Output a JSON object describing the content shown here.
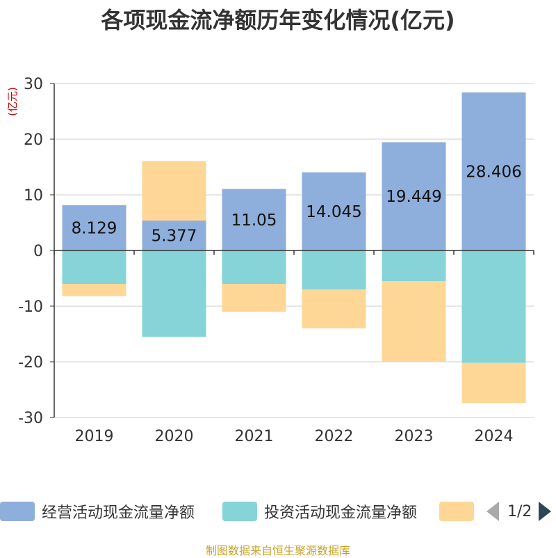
{
  "title": "各项现金流净额历年变化情况(亿元)",
  "source_text": "制图数据来自恒生聚源数据库",
  "legend": {
    "page_text": "1/2"
  },
  "colors": {
    "operating": "#8eaedb",
    "investing": "#86d4d8",
    "financing": "#fed797",
    "axis": "#333333",
    "grid": "#cccccc",
    "unit": "#cc0000"
  },
  "chart_data": {
    "type": "bar",
    "stacked": true,
    "title": "各项现金流净额历年变化情况(亿元)",
    "ylabel": "(亿元)",
    "ylim": [
      -30,
      30
    ],
    "yticks": [
      30,
      20,
      10,
      0,
      -10,
      -20,
      -30
    ],
    "categories": [
      "2019",
      "2020",
      "2021",
      "2022",
      "2023",
      "2024"
    ],
    "series": [
      {
        "name": "经营活动现金流量净额",
        "color": "#8eaedb",
        "show_labels": true,
        "values": [
          8.129,
          5.377,
          11.05,
          14.045,
          19.449,
          28.406
        ],
        "labels": [
          "8.129",
          "5.377",
          "11.05",
          "14.045",
          "19.449",
          "28.406"
        ]
      },
      {
        "name": "投资活动现金流量净额",
        "color": "#86d4d8",
        "show_labels": false,
        "values": [
          -6.0,
          -15.5,
          -6.0,
          -7.0,
          -5.5,
          -20.2
        ]
      },
      {
        "name": "",
        "color": "#fed797",
        "show_labels": false,
        "values": [
          -2.2,
          10.7,
          -5.0,
          -7.0,
          -14.5,
          -7.2
        ]
      }
    ],
    "legend_position": "bottom",
    "grid": true
  }
}
